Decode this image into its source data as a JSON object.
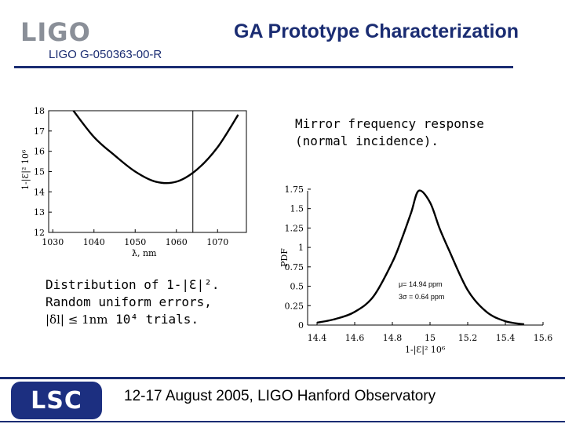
{
  "header": {
    "logo_text": "LIGO",
    "title": "GA Prototype Characterization",
    "doc_number": "LIGO G-050363-00-R"
  },
  "mirror_note": {
    "line1": "Mirror frequency response",
    "line2": "(normal incidence)."
  },
  "distribution_note": {
    "line1": "Distribution of 1-|Ɛ|².",
    "line2": "Random uniform errors,",
    "formula": "|δl| ≤ 1nm",
    "trials": "10⁴ trials."
  },
  "footer": {
    "logo_text": "LSC",
    "text": "12-17 August 2005, LIGO Hanford Observatory"
  },
  "colors": {
    "navy": "#1a2c72",
    "logo_gray": "#8a8f98",
    "lsc_blue": "#1c2f80"
  },
  "chart_data": [
    {
      "type": "line",
      "title": "",
      "xlabel": "ƛ, nm",
      "ylabel": "1-|Ɛ|² 10⁶",
      "x": [
        1035,
        1040,
        1045,
        1050,
        1055,
        1060,
        1065,
        1070,
        1075
      ],
      "y": [
        18.0,
        16.7,
        15.8,
        15.0,
        14.5,
        14.5,
        15.1,
        16.2,
        17.8
      ],
      "x_ticks": [
        "1030",
        "1040",
        "1050",
        "1060",
        "1070"
      ],
      "y_ticks": [
        "12",
        "13",
        "14",
        "15",
        "16",
        "17",
        "18"
      ],
      "xlim": [
        1029,
        1077
      ],
      "ylim": [
        12,
        18
      ],
      "vline_x": 1064,
      "grid": false
    },
    {
      "type": "line",
      "title": "",
      "xlabel": "1-|Ɛ|² 10⁶",
      "ylabel": "PDF",
      "x": [
        14.4,
        14.5,
        14.6,
        14.7,
        14.8,
        14.85,
        14.9,
        14.94,
        15.0,
        15.05,
        15.1,
        15.2,
        15.3,
        15.4,
        15.5
      ],
      "y": [
        0.03,
        0.08,
        0.17,
        0.37,
        0.81,
        1.11,
        1.45,
        1.73,
        1.58,
        1.25,
        0.97,
        0.45,
        0.17,
        0.05,
        0.01
      ],
      "x_ticks": [
        "14.4",
        "14.6",
        "14.8",
        "15",
        "15.2",
        "15.4",
        "15.6"
      ],
      "y_ticks": [
        "0",
        "0.25",
        "0.5",
        "0.75",
        "1",
        "1.25",
        "1.5",
        "1.75"
      ],
      "xlim": [
        14.35,
        15.6
      ],
      "ylim": [
        0,
        1.8
      ],
      "annotations": [
        "μ= 14.94 ppm",
        "3σ = 0.64 ppm"
      ],
      "grid": false
    }
  ]
}
